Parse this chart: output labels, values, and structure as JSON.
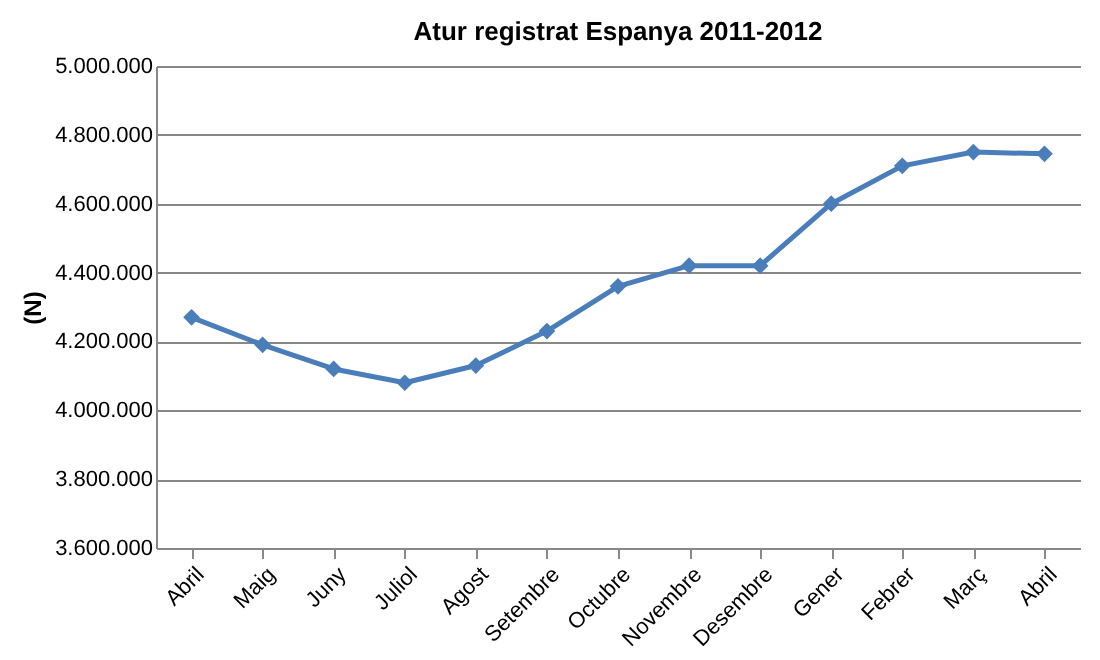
{
  "chart_data": {
    "type": "line",
    "title": "Atur registrat Espanya 2011-2012",
    "ylabel": "(N)",
    "categories": [
      "Abril",
      "Maig",
      "Juny",
      "Juliol",
      "Agost",
      "Setembre",
      "Octubre",
      "Novembre",
      "Desembre",
      "Gener",
      "Febrer",
      "Març",
      "Abril"
    ],
    "series": [
      {
        "color": "#4a7ebb",
        "values": [
          4270000,
          4190000,
          4120000,
          4080000,
          4130000,
          4230000,
          4360000,
          4420000,
          4420000,
          4600000,
          4710000,
          4750000,
          4745000
        ]
      }
    ],
    "ylim": [
      3600000,
      5000000
    ],
    "yticks": [
      {
        "value": 3600000,
        "label": "3.600.000"
      },
      {
        "value": 3800000,
        "label": "3.800.000"
      },
      {
        "value": 4000000,
        "label": "4.000.000"
      },
      {
        "value": 4200000,
        "label": "4.200.000"
      },
      {
        "value": 4400000,
        "label": "4.400.000"
      },
      {
        "value": 4600000,
        "label": "4.600.000"
      },
      {
        "value": 4800000,
        "label": "4.800.000"
      },
      {
        "value": 5000000,
        "label": "5.000.000"
      }
    ],
    "grid": "y",
    "marker": "diamond",
    "line_style": "solid"
  }
}
